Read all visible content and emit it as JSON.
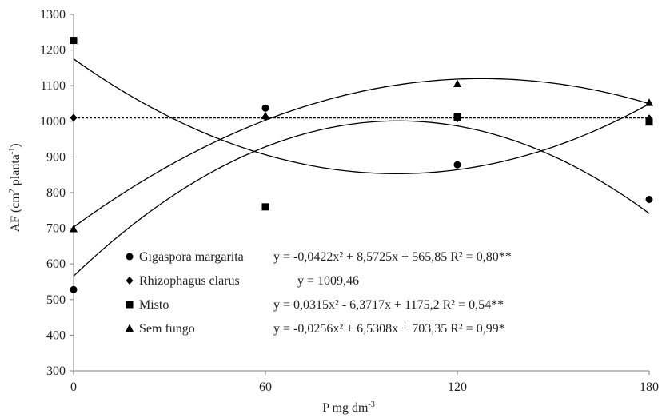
{
  "chart_data": {
    "type": "scatter",
    "title": "",
    "xlabel": "P mg dm",
    "xlabel_sup": "-3",
    "ylabel": "AF (cm",
    "ylabel_sup1": "2",
    "ylabel_mid": " planta",
    "ylabel_sup2": "-1",
    "ylabel_end": ")",
    "xlim": [
      0,
      180
    ],
    "ylim": [
      300,
      1300
    ],
    "x_ticks": [
      0,
      60,
      120,
      180
    ],
    "y_ticks": [
      300,
      400,
      500,
      600,
      700,
      800,
      900,
      1000,
      1100,
      1200,
      1300
    ],
    "x": [
      0,
      60,
      120,
      180
    ],
    "grid": false,
    "legend_position": "bottom-left inside",
    "series": [
      {
        "name": "Gigaspora margarita",
        "marker": "circle",
        "values": [
          528,
          1037,
          878,
          781
        ],
        "equation": "y = -0,0422x² + 8,5725x + 565,85 R² = 0,80**",
        "fit": {
          "kind": "quadratic",
          "a": -0.0422,
          "b": 8.5725,
          "c": 565.85
        }
      },
      {
        "name": "Rhizophagus clarus",
        "marker": "diamond",
        "values": [
          1010,
          1012,
          1008,
          1008
        ],
        "equation": "y = 1009,46",
        "fit": {
          "kind": "constant",
          "c": 1009.46,
          "dashed": true
        }
      },
      {
        "name": "Misto",
        "marker": "square",
        "values": [
          1227,
          760,
          1012,
          998
        ],
        "equation": "y = 0,0315x² - 6,3717x + 1175,2 R² = 0,54**",
        "fit": {
          "kind": "quadratic",
          "a": 0.0315,
          "b": -6.3717,
          "c": 1175.2
        }
      },
      {
        "name": "Sem fungo",
        "marker": "triangle",
        "values": [
          698,
          1015,
          1105,
          1052
        ],
        "equation": "y = -0,0256x² + 6,5308x + 703,35 R² = 0,99*",
        "fit": {
          "kind": "quadratic",
          "a": -0.0256,
          "b": 6.5308,
          "c": 703.35
        }
      }
    ]
  },
  "colors": {
    "ink": "#000000",
    "axis": "#808080"
  }
}
